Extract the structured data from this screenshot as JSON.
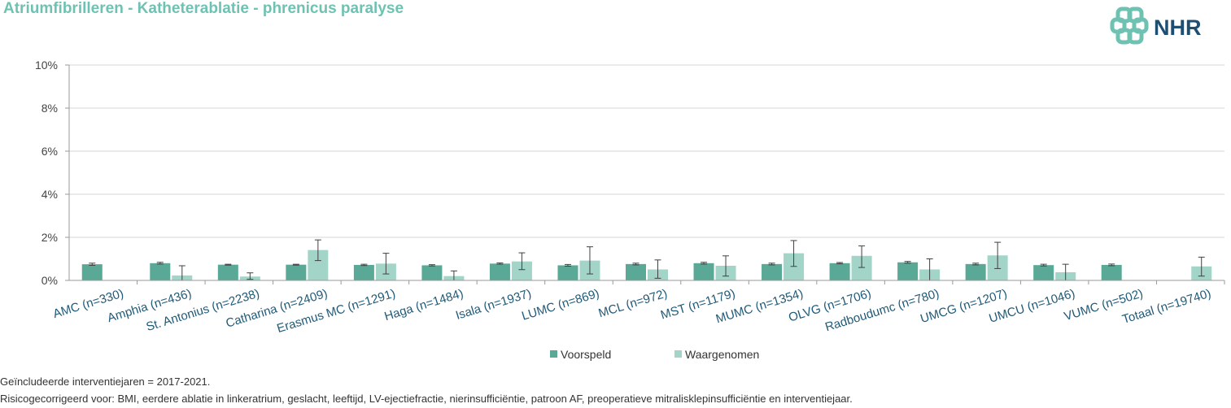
{
  "title": "Atriumfibrilleren - Katheterablatie - phrenicus paralyse",
  "logo": {
    "text": "NHR",
    "icon": "nhr-cross-logo-icon"
  },
  "colors": {
    "title": "#6fc2b2",
    "predicted": "#5aa896",
    "observed": "#a3d4c8",
    "logo": "#1e4f72",
    "logo_mark": "#6fc2b2"
  },
  "footnotes": {
    "years": "Geïncludeerde interventiejaren = 2017-2021.",
    "risk": "Risicogecorrigeerd voor: BMI, eerdere ablatie in linkeratrium, geslacht, leeftijd, LV-ejectiefractie, nierinsufficiëntie, patroon AF, preoperatieve mitralisklepinsufficiëntie en interventiejaar."
  },
  "chart_data": {
    "type": "bar",
    "ylim": [
      0,
      10
    ],
    "yticks": [
      "0%",
      "2%",
      "4%",
      "6%",
      "8%",
      "10%"
    ],
    "grid": true,
    "legend_position": "bottom",
    "categories": [
      "AMC (n=330)",
      "Amphia (n=436)",
      "St. Antonius (n=2238)",
      "Catharina (n=2409)",
      "Erasmus MC (n=1291)",
      "Haga (n=1484)",
      "Isala (n=1937)",
      "LUMC (n=869)",
      "MCL (n=972)",
      "MST (n=1179)",
      "MUMC (n=1354)",
      "OLVG (n=1706)",
      "Radboudumc (n=780)",
      "UMCG (n=1207)",
      "UMCU (n=1046)",
      "VUMC (n=502)",
      "Totaal (n=19740)"
    ],
    "series": [
      {
        "name": "Voorspeld",
        "values": [
          0.75,
          0.8,
          0.73,
          0.73,
          0.72,
          0.7,
          0.78,
          0.7,
          0.76,
          0.8,
          0.76,
          0.8,
          0.84,
          0.76,
          0.71,
          0.72,
          null
        ],
        "err_low": [
          0.7,
          0.76,
          0.71,
          0.71,
          0.69,
          0.67,
          0.75,
          0.66,
          0.72,
          0.76,
          0.72,
          0.77,
          0.8,
          0.72,
          0.67,
          0.68,
          null
        ],
        "err_high": [
          0.8,
          0.84,
          0.75,
          0.75,
          0.75,
          0.73,
          0.81,
          0.74,
          0.8,
          0.84,
          0.8,
          0.83,
          0.88,
          0.8,
          0.75,
          0.76,
          null
        ]
      },
      {
        "name": "Waargenomen",
        "values": [
          0.0,
          0.23,
          0.18,
          1.41,
          0.78,
          0.2,
          0.88,
          0.92,
          0.51,
          0.68,
          1.26,
          1.14,
          0.51,
          1.16,
          0.38,
          0.0,
          0.65
        ],
        "err_low": [
          null,
          0.0,
          0.05,
          0.92,
          0.3,
          0.0,
          0.5,
          0.3,
          0.1,
          0.2,
          0.65,
          0.6,
          0.0,
          0.55,
          0.0,
          null,
          0.2
        ],
        "err_high": [
          null,
          0.68,
          0.35,
          1.88,
          1.26,
          0.44,
          1.28,
          1.56,
          0.95,
          1.14,
          1.85,
          1.6,
          1.0,
          1.77,
          0.75,
          null,
          1.08
        ]
      }
    ]
  }
}
